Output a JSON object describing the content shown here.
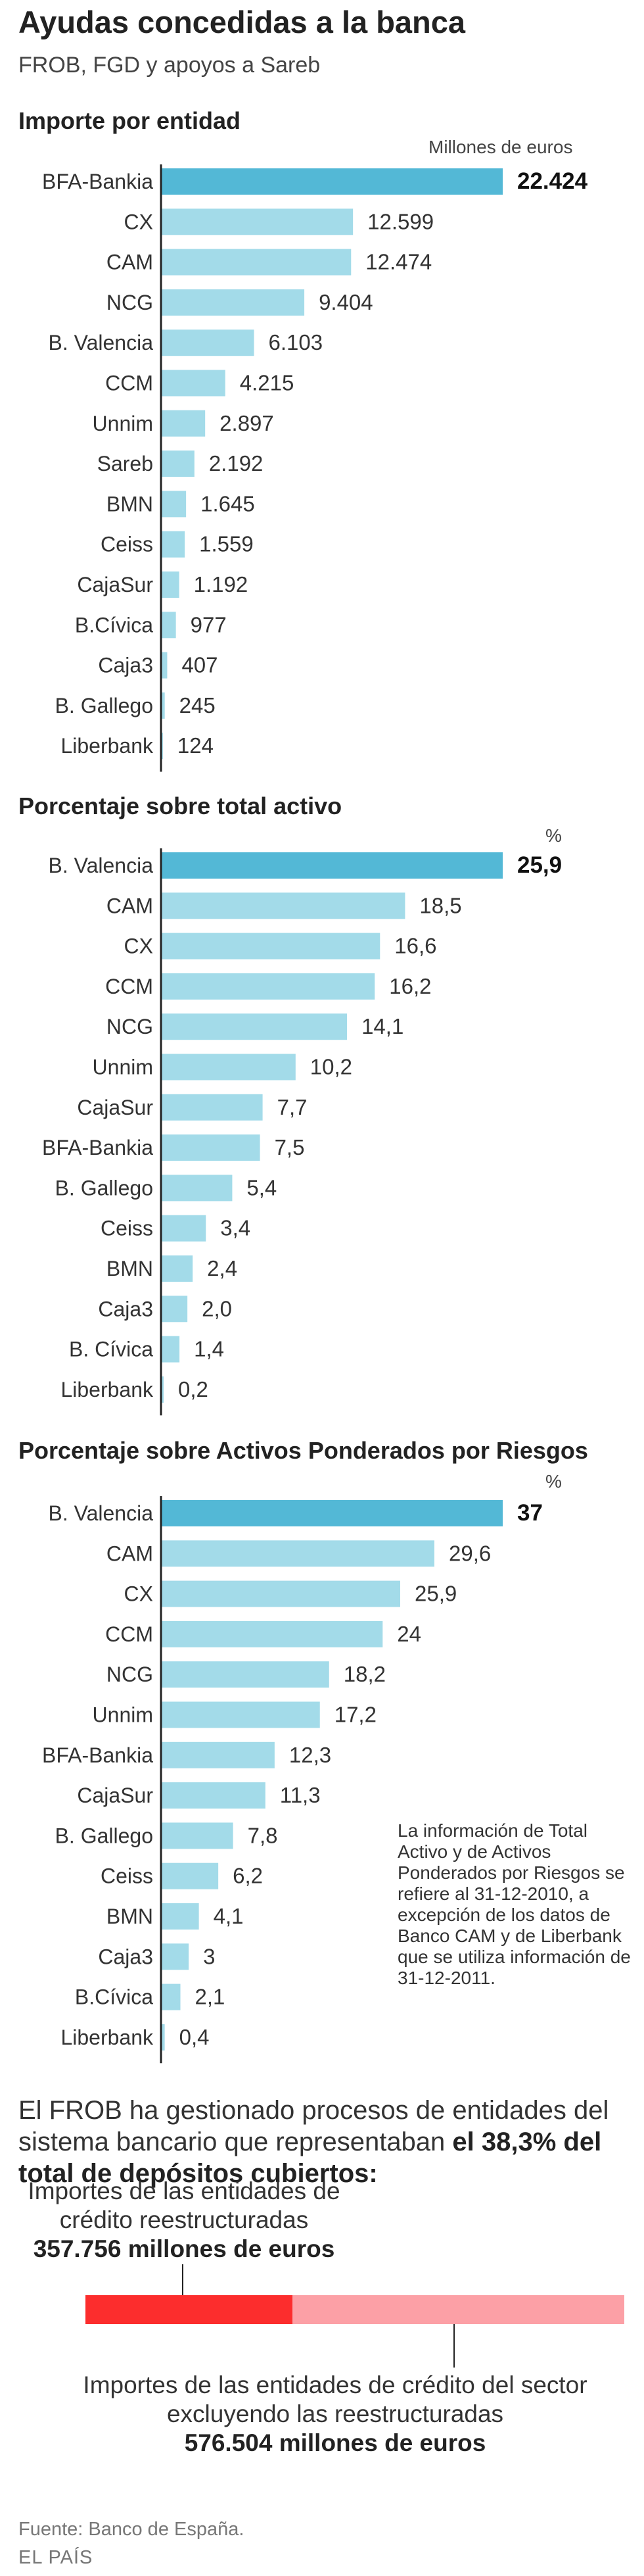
{
  "header": {
    "title": "Ayudas concedidas a la banca",
    "subtitle": "FROB, FGD y apoyos a Sareb"
  },
  "colors": {
    "highlight_bar": "#53b8d6",
    "bar": "#a3dbe9",
    "axis": "#222222",
    "restructured": "#fc2d2d",
    "others": "#fca0a6"
  },
  "chart_data": [
    {
      "type": "bar",
      "orientation": "horizontal",
      "title": "Importe por entidad",
      "unit_label": "Millones de euros",
      "categories": [
        "BFA-Bankia",
        "CX",
        "CAM",
        "NCG",
        "B. Valencia",
        "CCM",
        "Unnim",
        "Sareb",
        "BMN",
        "Ceiss",
        "CajaSur",
        "B.Cívica",
        "Caja3",
        "B. Gallego",
        "Liberbank"
      ],
      "values": [
        22424,
        12599,
        12474,
        9404,
        6103,
        4215,
        2897,
        2192,
        1645,
        1559,
        1192,
        977,
        407,
        245,
        124
      ],
      "value_labels": [
        "22.424",
        "12.599",
        "12.474",
        "9.404",
        "6.103",
        "4.215",
        "2.897",
        "2.192",
        "1.645",
        "1.559",
        "1.192",
        "977",
        "407",
        "245",
        "124"
      ],
      "xlim": [
        0,
        22424
      ],
      "highlight_index": 0
    },
    {
      "type": "bar",
      "orientation": "horizontal",
      "title": "Porcentaje sobre total activo",
      "unit_label": "%",
      "categories": [
        "B. Valencia",
        "CAM",
        "CX",
        "CCM",
        "NCG",
        "Unnim",
        "CajaSur",
        "BFA-Bankia",
        "B. Gallego",
        "Ceiss",
        "BMN",
        "Caja3",
        "B. Cívica",
        "Liberbank"
      ],
      "values": [
        25.9,
        18.5,
        16.6,
        16.2,
        14.1,
        10.2,
        7.7,
        7.5,
        5.4,
        3.4,
        2.4,
        2.0,
        1.4,
        0.2
      ],
      "value_labels": [
        "25,9",
        "18,5",
        "16,6",
        "16,2",
        "14,1",
        "10,2",
        "7,7",
        "7,5",
        "5,4",
        "3,4",
        "2,4",
        "2,0",
        "1,4",
        "0,2"
      ],
      "xlim": [
        0,
        25.9
      ],
      "highlight_index": 0
    },
    {
      "type": "bar",
      "orientation": "horizontal",
      "title": "Porcentaje sobre Activos Ponderados por Riesgos",
      "unit_label": "%",
      "categories": [
        "B. Valencia",
        "CAM",
        "CX",
        "CCM",
        "NCG",
        "Unnim",
        "BFA-Bankia",
        "CajaSur",
        "B. Gallego",
        "Ceiss",
        "BMN",
        "Caja3",
        "B.Cívica",
        "Liberbank"
      ],
      "values": [
        37,
        29.6,
        25.9,
        24,
        18.2,
        17.2,
        12.3,
        11.3,
        7.8,
        6.2,
        4.1,
        3,
        2.1,
        0.4
      ],
      "value_labels": [
        "37",
        "29,6",
        "25,9",
        "24",
        "18,2",
        "17,2",
        "12,3",
        "11,3",
        "7,8",
        "6,2",
        "4,1",
        "3",
        "2,1",
        "0,4"
      ],
      "xlim": [
        0,
        37
      ],
      "highlight_index": 0,
      "annotation": "La información de Total Activo y de Activos Ponderados por Riesgos se refiere al 31-12-2010, a excepción de los datos de Banco CAM y de Liberbank que se utiliza información de 31-12-2011."
    },
    {
      "type": "bar",
      "orientation": "stacked-horizontal",
      "title": "El FROB ha gestionado procesos de entidades del sistema bancario que representaban el 38,3% del total de depósitos cubiertos:",
      "segments": [
        {
          "name": "Importes de las entidades de crédito reestructuradas",
          "value": 357756,
          "value_label": "357.756 millones de euros"
        },
        {
          "name": "Importes de las entidades de crédito del sector excluyendo las reestructuradas",
          "value": 576504,
          "value_label": "576.504 millones de euros"
        }
      ],
      "share_label": "el 38,3% del total de depósitos cubiertos:"
    }
  ],
  "summary": {
    "text_before": "El FROB ha gestionado procesos de entidades del sistema bancario que representaban ",
    "text_bold": "el 38,3% del total de depósitos cubiertos:",
    "restructured_label": "Importes de las entidades de crédito reestructuradas",
    "restructured_amount": "357.756 millones de euros",
    "others_label": "Importes de las entidades de crédito del sector excluyendo las reestructuradas",
    "others_amount": "576.504 millones de euros"
  },
  "footer": {
    "source": "Fuente: Banco de España.",
    "brand": "EL PAÍS"
  }
}
